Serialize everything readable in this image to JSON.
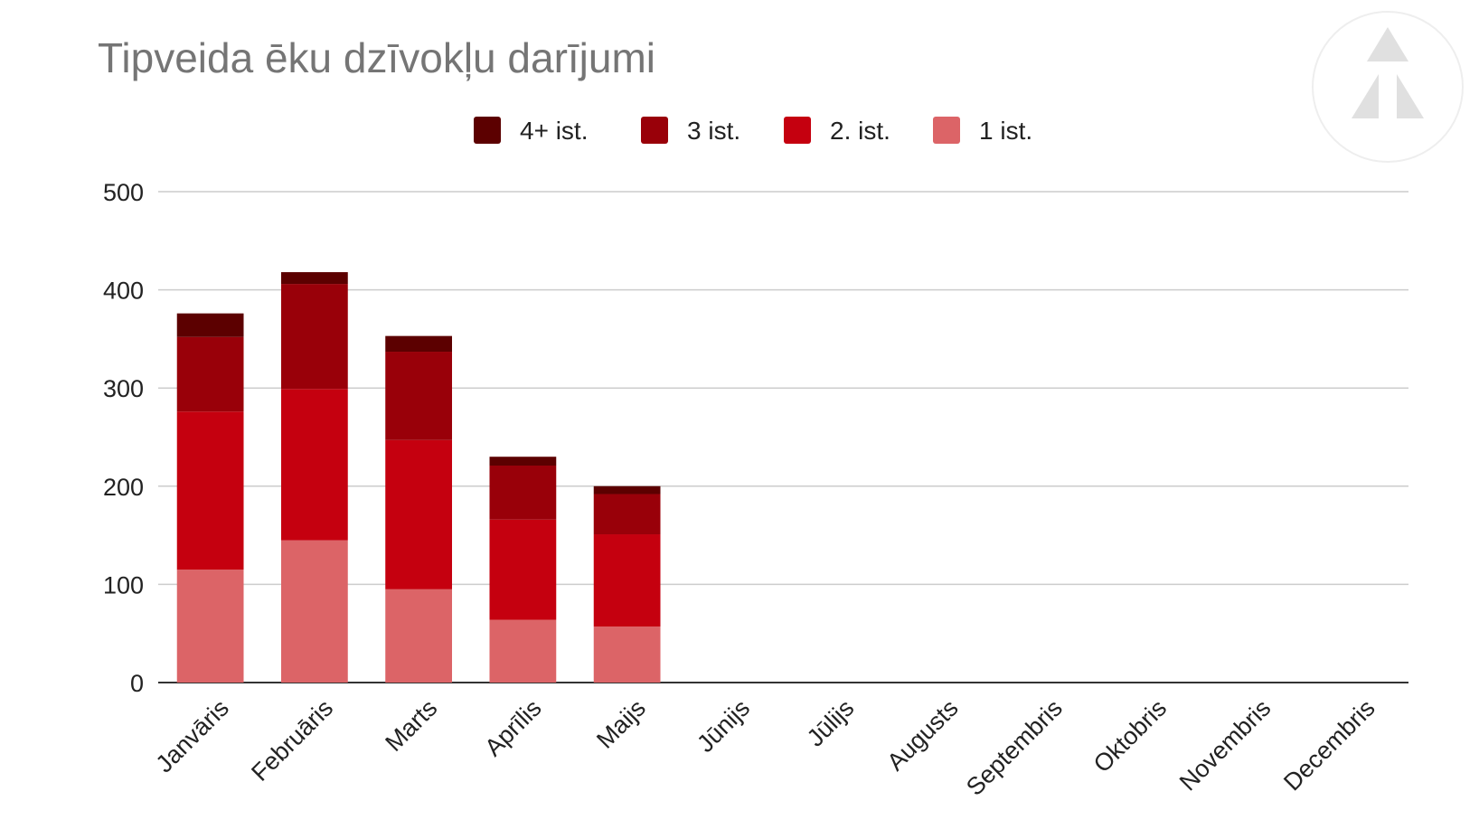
{
  "chart_data": {
    "type": "stacked_bar",
    "title": "Tipveida ēku dzīvokļu darījumi",
    "categories": [
      "Janvāris",
      "Februāris",
      "Marts",
      "Aprīlis",
      "Maijs",
      "Jūnijs",
      "Jūlijs",
      "Augusts",
      "Septembris",
      "Oktobris",
      "Novembris",
      "Decembris"
    ],
    "series": [
      {
        "name": "4+ ist.",
        "color": "#5c0000",
        "values": [
          24,
          12,
          16,
          9,
          8,
          null,
          null,
          null,
          null,
          null,
          null,
          null
        ]
      },
      {
        "name": "3 ist.",
        "color": "#990009",
        "values": [
          76,
          107,
          90,
          55,
          41,
          null,
          null,
          null,
          null,
          null,
          null,
          null
        ]
      },
      {
        "name": "2. ist.",
        "color": "#c5000f",
        "values": [
          161,
          154,
          152,
          102,
          94,
          null,
          null,
          null,
          null,
          null,
          null,
          null
        ]
      },
      {
        "name": "1 ist.",
        "color": "#dc6467",
        "values": [
          115,
          145,
          95,
          64,
          57,
          null,
          null,
          null,
          null,
          null,
          null,
          null
        ]
      }
    ],
    "ylim": [
      0,
      500
    ],
    "yticks": [
      0,
      100,
      200,
      300,
      400,
      500
    ],
    "grid": true,
    "legend": "top"
  }
}
